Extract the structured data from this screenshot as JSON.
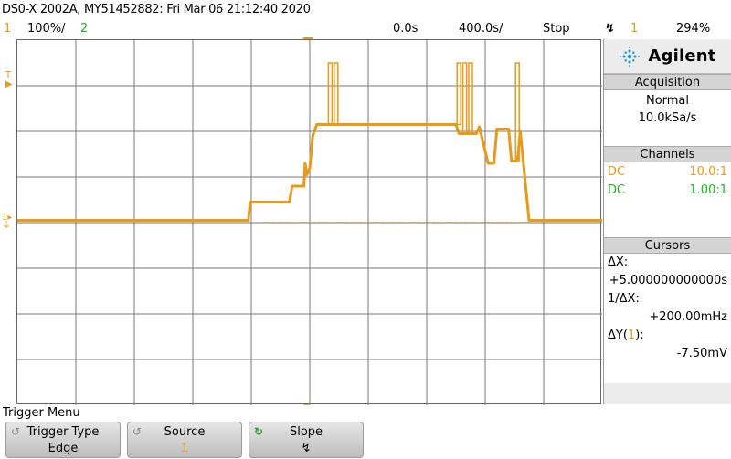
{
  "title": "DS0-X 2002A, MY51452882: Fri Mar 06 21:12:40 2020",
  "status": {
    "ch1_number": "1",
    "ch1_scale": "100",
    "ch1_unit": "%/",
    "ch2_number": "2",
    "time_position": "0.0s",
    "time_scale": "400.0s/",
    "run_state": "Stop",
    "trigger_channel": "1",
    "trigger_level": "294",
    "trigger_unit": "%"
  },
  "brand": "Agilent",
  "acquisition": {
    "heading": "Acquisition",
    "mode": "Normal",
    "rate": "10.0kSa/s"
  },
  "channels": {
    "heading": "Channels",
    "rows": [
      {
        "coupling": "DC",
        "probe": "10.0:1",
        "color": "#e89a1a"
      },
      {
        "coupling": "DC",
        "probe": "1.00:1",
        "color": "#22b422"
      }
    ]
  },
  "cursors": {
    "heading": "Cursors",
    "dx_label": "ΔX:",
    "dx_value": "+5.000000000000s",
    "inv_dx_label": "1/ΔX:",
    "inv_dx_value": "+200.00mHz",
    "dy_label_prefix": "ΔY(",
    "dy_channel": "1",
    "dy_label_suffix": "):",
    "dy_value": "-7.50mV"
  },
  "menu": {
    "title": "Trigger Menu",
    "softkeys": [
      {
        "label": "Trigger Type",
        "value": "Edge",
        "icon": "rotate-icon"
      },
      {
        "label": "Source",
        "value": "1",
        "icon": "rotate-icon"
      },
      {
        "label": "Slope",
        "value": "↯",
        "icon": "rotate-icon"
      }
    ]
  },
  "colors": {
    "ch1": "#e89a1a",
    "ch2": "#22b422",
    "screen_bg": "#ffffff"
  },
  "waveform": {
    "x_range": [
      0,
      10
    ],
    "y_range": [
      0,
      8
    ],
    "baseline": 4.05,
    "points": [
      [
        0.0,
        4.05
      ],
      [
        3.95,
        4.05
      ],
      [
        3.98,
        4.45
      ],
      [
        4.65,
        4.45
      ],
      [
        4.7,
        4.8
      ],
      [
        4.9,
        4.8
      ],
      [
        4.92,
        5.3
      ],
      [
        4.95,
        5.05
      ],
      [
        5.0,
        5.2
      ],
      [
        5.05,
        5.9
      ],
      [
        5.12,
        6.15
      ],
      [
        7.5,
        6.15
      ],
      [
        7.55,
        5.95
      ],
      [
        7.85,
        5.95
      ],
      [
        7.9,
        6.1
      ],
      [
        8.05,
        5.3
      ],
      [
        8.15,
        5.3
      ],
      [
        8.2,
        6.05
      ],
      [
        8.4,
        6.05
      ],
      [
        8.45,
        5.35
      ],
      [
        8.55,
        5.35
      ],
      [
        8.6,
        6.0
      ],
      [
        8.75,
        4.05
      ],
      [
        10.0,
        4.05
      ]
    ],
    "spikes": [
      {
        "x": 5.35,
        "to": 7.5
      },
      {
        "x": 5.45,
        "to": 7.5
      },
      {
        "x": 7.55,
        "to": 7.5
      },
      {
        "x": 7.65,
        "to": 7.5
      },
      {
        "x": 7.75,
        "to": 7.5
      },
      {
        "x": 8.55,
        "to": 7.5
      }
    ]
  }
}
